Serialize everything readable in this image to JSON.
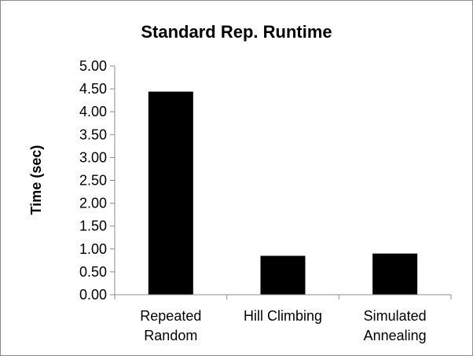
{
  "chart_data": {
    "type": "bar",
    "title": "Standard Rep. Runtime",
    "xlabel": "",
    "ylabel": "Time (sec)",
    "ylim": [
      0,
      5
    ],
    "yticks": [
      "0.00",
      "0.50",
      "1.00",
      "1.50",
      "2.00",
      "2.50",
      "3.00",
      "3.50",
      "4.00",
      "4.50",
      "5.00"
    ],
    "categories": [
      [
        "Repeated",
        "Random"
      ],
      [
        "Hill Climbing"
      ],
      [
        "Simulated",
        "Annealing"
      ]
    ],
    "values": [
      4.44,
      0.85,
      0.9
    ],
    "grid": false,
    "legend": "none",
    "bar_color": "#000000"
  }
}
